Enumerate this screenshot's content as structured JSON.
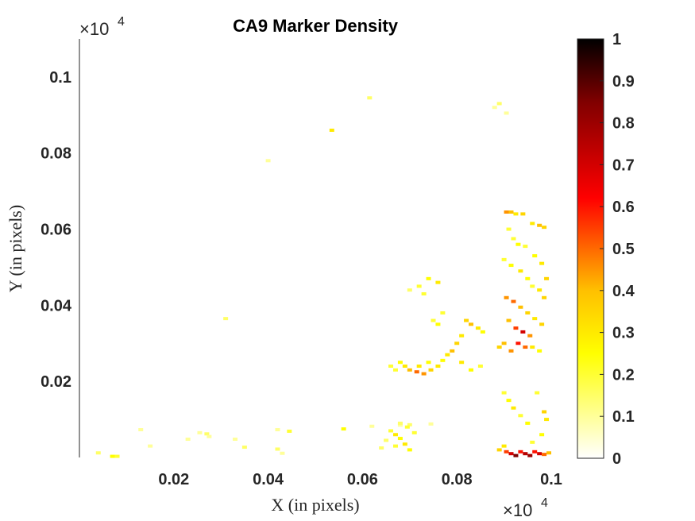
{
  "chart_data": {
    "type": "heatmap",
    "title": "CA9 Marker Density",
    "xlabel": "X (in pixels)",
    "ylabel": "Y (in pixels)",
    "x_ticks": [
      "0.02",
      "0.04",
      "0.06",
      "0.08",
      "0.1"
    ],
    "x_tick_values": [
      200,
      400,
      600,
      800,
      1000
    ],
    "y_ticks": [
      "0.02",
      "0.04",
      "0.06",
      "0.08",
      "0.1"
    ],
    "y_tick_values": [
      200,
      400,
      600,
      800,
      1000
    ],
    "x_exponent_base": "×10",
    "x_exponent_power": "4",
    "y_exponent_base": "×10",
    "y_exponent_power": "4",
    "xlim": [
      0,
      1000
    ],
    "ylim": [
      0,
      1100
    ],
    "colormap": "hot (reversed)",
    "colorbar": {
      "ticks": [
        "0",
        "0.1",
        "0.2",
        "0.3",
        "0.4",
        "0.5",
        "0.6",
        "0.7",
        "0.8",
        "0.9",
        "1"
      ],
      "tick_values": [
        0,
        0.1,
        0.2,
        0.3,
        0.4,
        0.5,
        0.6,
        0.7,
        0.8,
        0.9,
        1
      ],
      "range": [
        0,
        1
      ]
    },
    "points": [
      [
        40,
        12,
        0.15
      ],
      [
        70,
        3,
        0.25
      ],
      [
        80,
        3,
        0.2
      ],
      [
        130,
        73,
        0.1
      ],
      [
        150,
        30,
        0.1
      ],
      [
        255,
        65,
        0.1
      ],
      [
        270,
        62,
        0.15
      ],
      [
        275,
        55,
        0.1
      ],
      [
        230,
        48,
        0.1
      ],
      [
        310,
        365,
        0.15
      ],
      [
        330,
        48,
        0.1
      ],
      [
        350,
        27,
        0.15
      ],
      [
        420,
        22,
        0.15
      ],
      [
        430,
        11,
        0.1
      ],
      [
        445,
        69,
        0.2
      ],
      [
        400,
        780,
        0.1
      ],
      [
        420,
        73,
        0.1
      ],
      [
        535,
        860,
        0.3
      ],
      [
        560,
        75,
        0.25
      ],
      [
        615,
        945,
        0.15
      ],
      [
        620,
        82,
        0.1
      ],
      [
        680,
        85,
        0.1
      ],
      [
        700,
        86,
        0.15
      ],
      [
        745,
        88,
        0.1
      ],
      [
        890,
        930,
        0.15
      ],
      [
        905,
        905,
        0.1
      ],
      [
        880,
        920,
        0.1
      ],
      [
        905,
        645,
        0.45
      ],
      [
        915,
        645,
        0.4
      ],
      [
        925,
        640,
        0.3
      ],
      [
        940,
        640,
        0.35
      ],
      [
        960,
        615,
        0.3
      ],
      [
        975,
        610,
        0.4
      ],
      [
        985,
        605,
        0.35
      ],
      [
        910,
        600,
        0.2
      ],
      [
        920,
        575,
        0.2
      ],
      [
        930,
        560,
        0.25
      ],
      [
        945,
        555,
        0.2
      ],
      [
        965,
        530,
        0.25
      ],
      [
        980,
        510,
        0.3
      ],
      [
        990,
        470,
        0.35
      ],
      [
        900,
        520,
        0.2
      ],
      [
        915,
        505,
        0.25
      ],
      [
        935,
        490,
        0.3
      ],
      [
        950,
        470,
        0.25
      ],
      [
        960,
        450,
        0.2
      ],
      [
        975,
        440,
        0.3
      ],
      [
        985,
        420,
        0.35
      ],
      [
        905,
        420,
        0.45
      ],
      [
        920,
        410,
        0.5
      ],
      [
        935,
        395,
        0.4
      ],
      [
        950,
        380,
        0.35
      ],
      [
        965,
        365,
        0.3
      ],
      [
        980,
        350,
        0.35
      ],
      [
        910,
        360,
        0.4
      ],
      [
        925,
        340,
        0.55
      ],
      [
        940,
        330,
        0.7
      ],
      [
        955,
        320,
        0.45
      ],
      [
        930,
        300,
        0.6
      ],
      [
        945,
        290,
        0.5
      ],
      [
        915,
        280,
        0.45
      ],
      [
        900,
        300,
        0.4
      ],
      [
        890,
        290,
        0.35
      ],
      [
        960,
        290,
        0.3
      ],
      [
        975,
        280,
        0.25
      ],
      [
        820,
        360,
        0.35
      ],
      [
        830,
        350,
        0.4
      ],
      [
        845,
        340,
        0.3
      ],
      [
        855,
        330,
        0.25
      ],
      [
        810,
        320,
        0.3
      ],
      [
        800,
        300,
        0.35
      ],
      [
        790,
        280,
        0.4
      ],
      [
        780,
        270,
        0.3
      ],
      [
        770,
        255,
        0.25
      ],
      [
        760,
        240,
        0.3
      ],
      [
        745,
        230,
        0.35
      ],
      [
        730,
        220,
        0.45
      ],
      [
        715,
        225,
        0.5
      ],
      [
        700,
        230,
        0.4
      ],
      [
        690,
        240,
        0.3
      ],
      [
        680,
        250,
        0.25
      ],
      [
        670,
        230,
        0.2
      ],
      [
        660,
        240,
        0.2
      ],
      [
        720,
        240,
        0.3
      ],
      [
        740,
        250,
        0.25
      ],
      [
        850,
        240,
        0.2
      ],
      [
        830,
        230,
        0.25
      ],
      [
        810,
        250,
        0.3
      ],
      [
        750,
        360,
        0.2
      ],
      [
        760,
        350,
        0.25
      ],
      [
        770,
        380,
        0.2
      ],
      [
        740,
        470,
        0.25
      ],
      [
        760,
        460,
        0.3
      ],
      [
        720,
        450,
        0.2
      ],
      [
        700,
        440,
        0.15
      ],
      [
        730,
        430,
        0.2
      ],
      [
        900,
        170,
        0.2
      ],
      [
        910,
        150,
        0.25
      ],
      [
        920,
        130,
        0.3
      ],
      [
        935,
        110,
        0.2
      ],
      [
        950,
        90,
        0.25
      ],
      [
        970,
        170,
        0.2
      ],
      [
        985,
        120,
        0.35
      ],
      [
        990,
        100,
        0.3
      ],
      [
        980,
        60,
        0.25
      ],
      [
        960,
        40,
        0.2
      ],
      [
        905,
        15,
        0.55
      ],
      [
        915,
        10,
        0.7
      ],
      [
        925,
        5,
        0.85
      ],
      [
        935,
        15,
        0.6
      ],
      [
        945,
        10,
        0.75
      ],
      [
        955,
        5,
        0.8
      ],
      [
        965,
        15,
        0.6
      ],
      [
        975,
        10,
        0.7
      ],
      [
        985,
        8,
        0.5
      ],
      [
        995,
        12,
        0.4
      ],
      [
        890,
        20,
        0.35
      ],
      [
        900,
        30,
        0.3
      ],
      [
        660,
        70,
        0.2
      ],
      [
        670,
        60,
        0.3
      ],
      [
        680,
        50,
        0.25
      ],
      [
        690,
        35,
        0.3
      ],
      [
        700,
        20,
        0.25
      ],
      [
        670,
        30,
        0.2
      ],
      [
        650,
        45,
        0.15
      ],
      [
        640,
        25,
        0.15
      ],
      [
        680,
        90,
        0.15
      ],
      [
        695,
        80,
        0.2
      ],
      [
        710,
        65,
        0.2
      ]
    ]
  }
}
